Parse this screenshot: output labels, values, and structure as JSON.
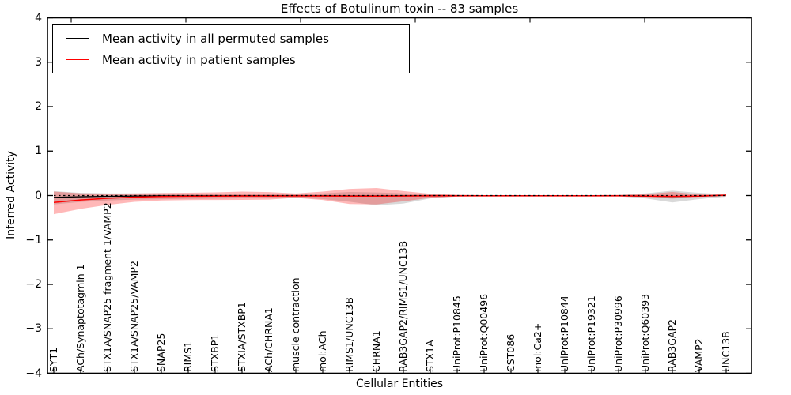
{
  "title": "Effects of Botulinum toxin -- 83 samples",
  "axes": {
    "ylabel": "Inferred Activity",
    "xlabel": "Cellular Entities",
    "y_ticks": [
      {
        "v": 4,
        "label": "4"
      },
      {
        "v": 3,
        "label": "3"
      },
      {
        "v": 2,
        "label": "2"
      },
      {
        "v": 1,
        "label": "1"
      },
      {
        "v": 0,
        "label": "0"
      },
      {
        "v": -1,
        "label": "−1"
      },
      {
        "v": -2,
        "label": "−2"
      },
      {
        "v": -3,
        "label": "−3"
      },
      {
        "v": -4,
        "label": "−4"
      }
    ]
  },
  "legend": {
    "items": [
      {
        "label": "Mean activity in all permuted samples",
        "color": "#000000"
      },
      {
        "label": "Mean activity in patient samples",
        "color": "#ff0000"
      }
    ]
  },
  "chart_data": {
    "type": "line",
    "title": "Effects of Botulinum toxin -- 83 samples",
    "xlabel": "Cellular Entities",
    "ylabel": "Inferred Activity",
    "ylim": [
      -4,
      4
    ],
    "grid": false,
    "legend_position": "upper left",
    "zero_reference_line": true,
    "categories": [
      "SYT1",
      "ACh/Synaptotagmin 1",
      "STX1A/SNAP25 fragment 1/VAMP2",
      "STX1A/SNAP25/VAMP2",
      "SNAP25",
      "RIMS1",
      "STXBP1",
      "STXIA/STXBP1",
      "ACh/CHRNA1",
      "muscle contraction",
      "mol:ACh",
      "RIMS1/UNC13B",
      "CHRNA1",
      "RAB3GAP2/RIMS1/UNC13B",
      "STX1A",
      "UniProt:P10845",
      "UniProt:Q00496",
      "CST086",
      "mol:Ca2+",
      "UniProt:P10844",
      "UniProt:P19321",
      "UniProt:P30996",
      "UniProt:Q60393",
      "RAB3GAP2",
      "VAMP2",
      "UNC13B"
    ],
    "series": [
      {
        "name": "Mean activity in all permuted samples",
        "color": "#000000",
        "values": [
          -0.04,
          -0.028,
          -0.018,
          -0.012,
          -0.008,
          -0.006,
          -0.005,
          -0.005,
          -0.004,
          -0.004,
          -0.005,
          -0.006,
          -0.006,
          -0.005,
          -0.004,
          -0.004,
          -0.004,
          -0.004,
          -0.004,
          -0.004,
          -0.004,
          -0.005,
          -0.012,
          -0.022,
          -0.014,
          0.008
        ]
      },
      {
        "name": "Mean activity in patient samples",
        "color": "#ff0000",
        "values": [
          -0.155,
          -0.1,
          -0.062,
          -0.035,
          -0.022,
          -0.016,
          -0.013,
          -0.011,
          -0.01,
          -0.009,
          -0.011,
          -0.013,
          -0.013,
          -0.011,
          -0.007,
          -0.006,
          -0.006,
          -0.006,
          -0.006,
          -0.006,
          -0.006,
          -0.007,
          -0.012,
          -0.018,
          -0.012,
          0.008
        ]
      }
    ],
    "bands": [
      {
        "name": "permuted-samples-spread",
        "color": "rgba(0,0,0,0.15)",
        "upper": [
          0.1,
          0.06,
          0.05,
          0.05,
          0.048,
          0.045,
          0.042,
          0.04,
          0.036,
          0.03,
          0.05,
          0.08,
          0.07,
          0.05,
          0.03,
          0.015,
          0.01,
          0.01,
          0.01,
          0.01,
          0.01,
          0.014,
          0.05,
          0.11,
          0.06,
          0.03
        ],
        "lower": [
          -0.2,
          -0.145,
          -0.11,
          -0.092,
          -0.082,
          -0.076,
          -0.07,
          -0.062,
          -0.055,
          -0.046,
          -0.08,
          -0.14,
          -0.22,
          -0.18,
          -0.065,
          -0.022,
          -0.014,
          -0.014,
          -0.014,
          -0.014,
          -0.014,
          -0.018,
          -0.065,
          -0.155,
          -0.08,
          -0.026
        ]
      },
      {
        "name": "patient-samples-spread",
        "color": "rgba(255,0,0,0.28)",
        "upper": [
          0.09,
          0.05,
          0.042,
          0.046,
          0.056,
          0.062,
          0.072,
          0.09,
          0.078,
          0.046,
          0.09,
          0.15,
          0.17,
          0.1,
          0.04,
          0.016,
          0.01,
          0.01,
          0.01,
          0.01,
          0.01,
          0.014,
          0.032,
          0.08,
          0.026,
          0.02
        ],
        "lower": [
          -0.42,
          -0.3,
          -0.21,
          -0.142,
          -0.112,
          -0.102,
          -0.1,
          -0.098,
          -0.09,
          -0.052,
          -0.1,
          -0.19,
          -0.2,
          -0.13,
          -0.052,
          -0.02,
          -0.016,
          -0.016,
          -0.016,
          -0.016,
          -0.016,
          -0.016,
          -0.034,
          -0.068,
          -0.032,
          -0.016
        ]
      }
    ]
  }
}
